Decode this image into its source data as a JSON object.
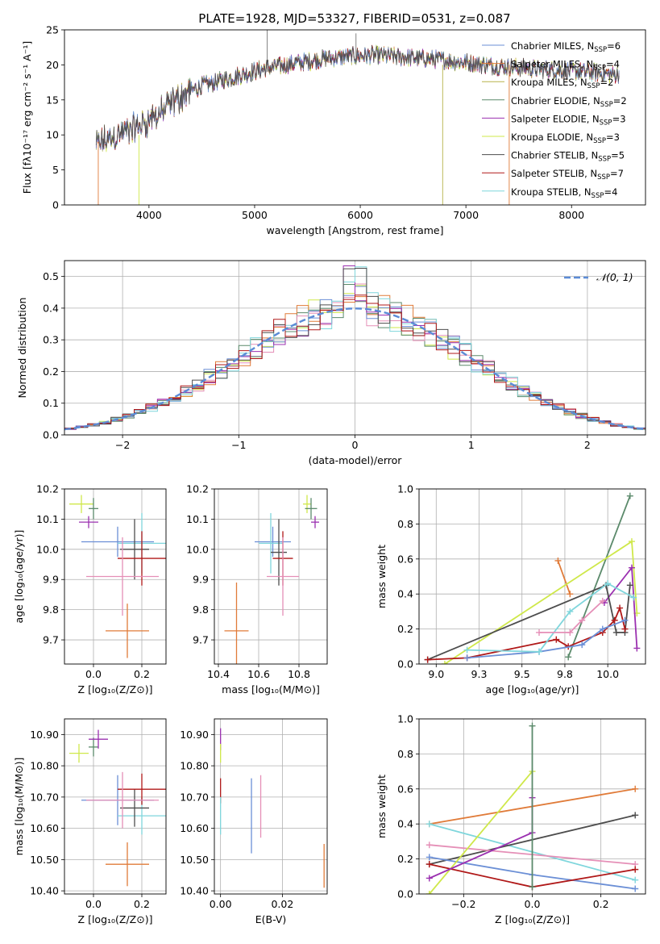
{
  "colors": {
    "chabrier_miles": "#6b8fd6",
    "salpeter_miles": "#e07b39",
    "kroupa_miles": "#b7b24a",
    "chabrier_elodie": "#5b8a6b",
    "salpeter_elodie": "#9b30b0",
    "kroupa_elodie": "#cfe84a",
    "chabrier_stelib": "#4d4d4d",
    "salpeter_stelib": "#b01818",
    "kroupa_stelib": "#7fd6dc",
    "pink": "#e58fb7",
    "gaussian": "#5b8bd6"
  },
  "panels": {
    "spectrum": {
      "title": "PLATE=1928, MJD=53327, FIBERID=0531, z=0.087",
      "xlabel": "wavelength [Angstrom, rest frame]",
      "ylabel": "Flux [fλ10⁻¹⁷ erg cm⁻² s⁻¹ A⁻¹]",
      "legend": [
        {
          "label": "Chabrier MILES, N",
          "sub": "SSP",
          "tail": "=6",
          "color": "#6b8fd6"
        },
        {
          "label": "Salpeter MILES, N",
          "sub": "SSP",
          "tail": "=4",
          "color": "#e07b39"
        },
        {
          "label": "Kroupa MILES, N",
          "sub": "SSP",
          "tail": "=2",
          "color": "#b7b24a"
        },
        {
          "label": "Chabrier ELODIE, N",
          "sub": "SSP",
          "tail": "=2",
          "color": "#5b8a6b"
        },
        {
          "label": "Salpeter ELODIE, N",
          "sub": "SSP",
          "tail": "=3",
          "color": "#9b30b0"
        },
        {
          "label": "Kroupa ELODIE, N",
          "sub": "SSP",
          "tail": "=3",
          "color": "#cfe84a"
        },
        {
          "label": "Chabrier STELIB, N",
          "sub": "SSP",
          "tail": "=5",
          "color": "#4d4d4d"
        },
        {
          "label": "Salpeter STELIB, N",
          "sub": "SSP",
          "tail": "=7",
          "color": "#b01818"
        },
        {
          "label": "Kroupa STELIB, N",
          "sub": "SSP",
          "tail": "=4",
          "color": "#7fd6dc"
        }
      ]
    },
    "hist": {
      "xlabel": "(data-model)/error",
      "ylabel": "Normed distribution",
      "legend": "𝒩(0, 1)"
    },
    "age_Z": {
      "xlabel": "Z [log₁₀(Z/Z⊙)]",
      "ylabel": "age  [log₁₀(age/yr)]"
    },
    "age_mass": {
      "xlabel": "mass [log₁₀(M/M⊙)]"
    },
    "mw_age": {
      "xlabel": "age  [log₁₀(age/yr)]",
      "ylabel": "mass weight"
    },
    "mass_Z": {
      "xlabel": "Z [log₁₀(Z/Z⊙)]",
      "ylabel": "mass [log₁₀(M/M⊙)]"
    },
    "mass_ebv": {
      "xlabel": "E(B-V)"
    },
    "mw_Z": {
      "xlabel": "Z [log₁₀(Z/Z⊙)]",
      "ylabel": "mass weight"
    }
  },
  "chart_data": [
    {
      "type": "line",
      "title": "PLATE=1928, MJD=53327, FIBERID=0531, z=0.087",
      "xlabel": "wavelength [Angstrom, rest frame]",
      "ylabel": "Flux [fλ10⁻¹⁷ erg cm⁻² s⁻¹ A⁻¹]",
      "xlim": [
        3200,
        8700
      ],
      "ylim": [
        0,
        25
      ],
      "xticks": [
        4000,
        5000,
        6000,
        7000,
        8000
      ],
      "yticks": [
        0,
        5,
        10,
        15,
        20,
        25
      ],
      "continuum_x": [
        3500,
        3700,
        3900,
        4100,
        4300,
        4500,
        4700,
        4900,
        5100,
        5300,
        5500,
        5700,
        5900,
        6100,
        6300,
        6500,
        6700,
        6900,
        7100,
        7300,
        7500,
        7700,
        7900,
        8100,
        8300,
        8450
      ],
      "continuum_y": [
        8.5,
        10.0,
        11.2,
        13.0,
        15.5,
        17.0,
        17.8,
        18.7,
        19.5,
        20.0,
        20.5,
        21.0,
        21.2,
        21.4,
        21.2,
        21.0,
        20.8,
        20.5,
        20.2,
        19.8,
        19.6,
        19.4,
        19.2,
        19.0,
        18.8,
        18.6
      ],
      "grid": false,
      "legend_position": "right",
      "series": [
        {
          "name": "Chabrier MILES, NSSP=6"
        },
        {
          "name": "Salpeter MILES, NSSP=4"
        },
        {
          "name": "Kroupa MILES, NSSP=2"
        },
        {
          "name": "Chabrier ELODIE, NSSP=2"
        },
        {
          "name": "Salpeter ELODIE, NSSP=3"
        },
        {
          "name": "Kroupa ELODIE, NSSP=3"
        },
        {
          "name": "Chabrier STELIB, NSSP=5"
        },
        {
          "name": "Salpeter STELIB, NSSP=7"
        },
        {
          "name": "Kroupa STELIB, NSSP=4"
        }
      ]
    },
    {
      "type": "bar",
      "xlabel": "(data-model)/error",
      "ylabel": "Normed distribution",
      "xlim": [
        -2.5,
        2.5
      ],
      "ylim": [
        0,
        0.55
      ],
      "xticks": [
        -2,
        -1,
        0,
        1,
        2
      ],
      "yticks": [
        0.0,
        0.1,
        0.2,
        0.3,
        0.4,
        0.5
      ],
      "bin_width": 0.1,
      "gaussian": {
        "name": "𝒩(0, 1)",
        "mu": 0,
        "sigma": 1
      },
      "grid": true,
      "legend_position": "top-right"
    },
    {
      "type": "scatter",
      "xlabel": "Z [log₁₀(Z/Z⊙)]",
      "ylabel": "age  [log₁₀(age/yr)]",
      "xlim": [
        -0.12,
        0.3
      ],
      "ylim": [
        9.62,
        10.2
      ],
      "xticks": [
        0.0,
        0.2
      ],
      "yticks": [
        9.7,
        9.8,
        9.9,
        10.0,
        10.1,
        10.2
      ],
      "points": [
        {
          "color": "#cfe84a",
          "x": -0.05,
          "xerr": 0.05,
          "y": 10.15,
          "yerr": 0.03
        },
        {
          "color": "#5b8a6b",
          "x": 0.0,
          "xerr": 0.02,
          "y": 10.135,
          "yerr": 0.035
        },
        {
          "color": "#9b30b0",
          "x": -0.02,
          "xerr": 0.04,
          "y": 10.09,
          "yerr": 0.02
        },
        {
          "color": "#6b8fd6",
          "x": 0.1,
          "xerr": 0.15,
          "y": 10.025,
          "yerr": 0.05
        },
        {
          "color": "#7fd6dc",
          "x": 0.2,
          "xerr": 0.1,
          "y": 10.02,
          "yerr": 0.1
        },
        {
          "color": "#4d4d4d",
          "x": 0.17,
          "xerr": 0.06,
          "y": 10.0,
          "yerr": 0.1
        },
        {
          "color": "#b01818",
          "x": 0.2,
          "xerr": 0.1,
          "y": 9.97,
          "yerr": 0.09
        },
        {
          "color": "#e58fb7",
          "x": 0.12,
          "xerr": 0.15,
          "y": 9.91,
          "yerr": 0.13
        },
        {
          "color": "#e07b39",
          "x": 0.14,
          "xerr": 0.09,
          "y": 9.73,
          "yerr": 0.09
        }
      ],
      "grid": true
    },
    {
      "type": "scatter",
      "xlabel": "mass [log₁₀(M/M⊙)]",
      "xlim": [
        10.38,
        10.94
      ],
      "ylim": [
        9.62,
        10.2
      ],
      "xticks": [
        10.4,
        10.6,
        10.8
      ],
      "yticks": [
        9.7,
        9.8,
        9.9,
        10.0,
        10.1,
        10.2
      ],
      "points": [
        {
          "color": "#cfe84a",
          "x": 10.84,
          "xerr": 0.02,
          "y": 10.15,
          "yerr": 0.03
        },
        {
          "color": "#5b8a6b",
          "x": 10.86,
          "xerr": 0.03,
          "y": 10.135,
          "yerr": 0.035
        },
        {
          "color": "#9b30b0",
          "x": 10.88,
          "xerr": 0.02,
          "y": 10.09,
          "yerr": 0.02
        },
        {
          "color": "#6b8fd6",
          "x": 10.67,
          "xerr": 0.09,
          "y": 10.025,
          "yerr": 0.05
        },
        {
          "color": "#7fd6dc",
          "x": 10.66,
          "xerr": 0.06,
          "y": 10.02,
          "yerr": 0.1
        },
        {
          "color": "#4d4d4d",
          "x": 10.7,
          "xerr": 0.04,
          "y": 9.99,
          "yerr": 0.11
        },
        {
          "color": "#b01818",
          "x": 10.72,
          "xerr": 0.05,
          "y": 9.97,
          "yerr": 0.09
        },
        {
          "color": "#e58fb7",
          "x": 10.72,
          "xerr": 0.08,
          "y": 9.91,
          "yerr": 0.13
        },
        {
          "color": "#e07b39",
          "x": 10.49,
          "xerr": 0.06,
          "y": 9.73,
          "yerr": 0.16
        }
      ],
      "grid": true
    },
    {
      "type": "line",
      "xlabel": "age  [log₁₀(age/yr)]",
      "ylabel": "mass weight",
      "xlim": [
        8.9,
        10.22
      ],
      "ylim": [
        0,
        1
      ],
      "xticks": [
        9.0,
        9.25,
        9.5,
        9.75,
        10.0
      ],
      "yticks": [
        0.0,
        0.2,
        0.4,
        0.6,
        0.8,
        1.0
      ],
      "series": [
        {
          "color": "#e07b39",
          "x": [
            9.71,
            9.78
          ],
          "y": [
            0.59,
            0.4
          ]
        },
        {
          "color": "#5b8a6b",
          "x": [
            9.77,
            10.13
          ],
          "y": [
            0.04,
            0.96
          ]
        },
        {
          "color": "#cfe84a",
          "x": [
            9.05,
            10.14,
            10.17
          ],
          "y": [
            0.0,
            0.7,
            0.29
          ]
        },
        {
          "color": "#9b30b0",
          "x": [
            9.98,
            10.14,
            10.17
          ],
          "y": [
            0.35,
            0.55,
            0.09
          ]
        },
        {
          "color": "#4d4d4d",
          "x": [
            8.95,
            9.99,
            10.05,
            10.1,
            10.13
          ],
          "y": [
            0.025,
            0.45,
            0.18,
            0.18,
            0.45
          ]
        },
        {
          "color": "#b01818",
          "x": [
            8.95,
            9.18,
            9.7,
            9.77,
            9.97,
            10.04,
            10.07,
            10.1
          ],
          "y": [
            0.025,
            0.035,
            0.14,
            0.1,
            0.18,
            0.25,
            0.32,
            0.2
          ]
        },
        {
          "color": "#6b8fd6",
          "x": [
            9.18,
            9.6,
            9.85,
            9.97,
            10.1
          ],
          "y": [
            0.035,
            0.07,
            0.11,
            0.2,
            0.25
          ]
        },
        {
          "color": "#7fd6dc",
          "x": [
            9.18,
            9.6,
            9.78,
            10.0,
            10.15
          ],
          "y": [
            0.08,
            0.07,
            0.3,
            0.46,
            0.38
          ]
        },
        {
          "color": "#e58fb7",
          "x": [
            9.6,
            9.78,
            9.85,
            9.97
          ],
          "y": [
            0.18,
            0.18,
            0.25,
            0.36
          ]
        }
      ],
      "grid": true
    },
    {
      "type": "scatter",
      "xlabel": "Z [log₁₀(Z/Z⊙)]",
      "ylabel": "mass [log₁₀(M/M⊙)]",
      "xlim": [
        -0.12,
        0.3
      ],
      "ylim": [
        10.39,
        10.95
      ],
      "xticks": [
        0.0,
        0.2
      ],
      "yticks": [
        10.4,
        10.5,
        10.6,
        10.7,
        10.8,
        10.9
      ],
      "points": [
        {
          "color": "#cfe84a",
          "x": -0.06,
          "xerr": 0.04,
          "y": 10.84,
          "yerr": 0.03
        },
        {
          "color": "#5b8a6b",
          "x": 0.0,
          "xerr": 0.02,
          "y": 10.86,
          "yerr": 0.03
        },
        {
          "color": "#9b30b0",
          "x": 0.02,
          "xerr": 0.04,
          "y": 10.885,
          "yerr": 0.03
        },
        {
          "color": "#6b8fd6",
          "x": 0.1,
          "xerr": 0.15,
          "y": 10.69,
          "yerr": 0.08
        },
        {
          "color": "#7fd6dc",
          "x": 0.2,
          "xerr": 0.1,
          "y": 10.64,
          "yerr": 0.06
        },
        {
          "color": "#4d4d4d",
          "x": 0.17,
          "xerr": 0.06,
          "y": 10.665,
          "yerr": 0.06
        },
        {
          "color": "#b01818",
          "x": 0.2,
          "xerr": 0.1,
          "y": 10.725,
          "yerr": 0.05
        },
        {
          "color": "#e58fb7",
          "x": 0.12,
          "xerr": 0.15,
          "y": 10.69,
          "yerr": 0.09
        },
        {
          "color": "#e07b39",
          "x": 0.14,
          "xerr": 0.09,
          "y": 10.485,
          "yerr": 0.07
        }
      ],
      "grid": true
    },
    {
      "type": "scatter",
      "xlabel": "E(B-V)",
      "xlim": [
        -0.002,
        0.0345
      ],
      "ylim": [
        10.39,
        10.95
      ],
      "xticks": [
        0.0,
        0.02
      ],
      "yticks": [
        10.4,
        10.5,
        10.6,
        10.7,
        10.8,
        10.9
      ],
      "points": [
        {
          "color": "#9b30b0",
          "x": 0.0,
          "xerr": 0,
          "y": 10.885,
          "yerr": 0.035
        },
        {
          "color": "#cfe84a",
          "x": 0.0,
          "xerr": 0,
          "y": 10.84,
          "yerr": 0.03
        },
        {
          "color": "#b01818",
          "x": 0.0,
          "xerr": 0,
          "y": 10.72,
          "yerr": 0.04
        },
        {
          "color": "#7fd6dc",
          "x": 0.0,
          "xerr": 0,
          "y": 10.64,
          "yerr": 0.06
        },
        {
          "color": "#6b8fd6",
          "x": 0.01,
          "xerr": 0,
          "y": 10.64,
          "yerr": 0.12
        },
        {
          "color": "#e58fb7",
          "x": 0.013,
          "xerr": 0,
          "y": 10.67,
          "yerr": 0.1
        },
        {
          "color": "#e07b39",
          "x": 0.0335,
          "xerr": 0,
          "y": 10.48,
          "yerr": 0.07
        }
      ],
      "grid": true
    },
    {
      "type": "line",
      "xlabel": "Z [log₁₀(Z/Z⊙)]",
      "ylabel": "mass weight",
      "xlim": [
        -0.33,
        0.33
      ],
      "ylim": [
        0,
        1
      ],
      "xticks": [
        -0.2,
        0.0,
        0.2
      ],
      "yticks": [
        0.0,
        0.2,
        0.4,
        0.6,
        0.8,
        1.0
      ],
      "series": [
        {
          "color": "#e07b39",
          "x": [
            -0.3,
            0.3
          ],
          "y": [
            0.4,
            0.6
          ]
        },
        {
          "color": "#7fd6dc",
          "x": [
            -0.3,
            0.3
          ],
          "y": [
            0.4,
            0.08
          ]
        },
        {
          "color": "#4d4d4d",
          "x": [
            -0.3,
            0.3
          ],
          "y": [
            0.17,
            0.45
          ]
        },
        {
          "color": "#e58fb7",
          "x": [
            -0.3,
            0.3
          ],
          "y": [
            0.28,
            0.17
          ]
        },
        {
          "color": "#6b8fd6",
          "x": [
            -0.3,
            0.0,
            0.3
          ],
          "y": [
            0.21,
            0.11,
            0.03
          ]
        },
        {
          "color": "#b01818",
          "x": [
            -0.3,
            0.0,
            0.3
          ],
          "y": [
            0.17,
            0.04,
            0.14
          ]
        },
        {
          "color": "#cfe84a",
          "x": [
            -0.3,
            0.0
          ],
          "y": [
            0.0,
            0.7
          ]
        },
        {
          "color": "#9b30b0",
          "x": [
            -0.3,
            0.0,
            0.0
          ],
          "y": [
            0.09,
            0.35,
            0.55
          ]
        },
        {
          "color": "#5b8a6b",
          "x": [
            0.0,
            0.0
          ],
          "y": [
            0.04,
            0.96
          ]
        }
      ],
      "grid": true
    }
  ]
}
